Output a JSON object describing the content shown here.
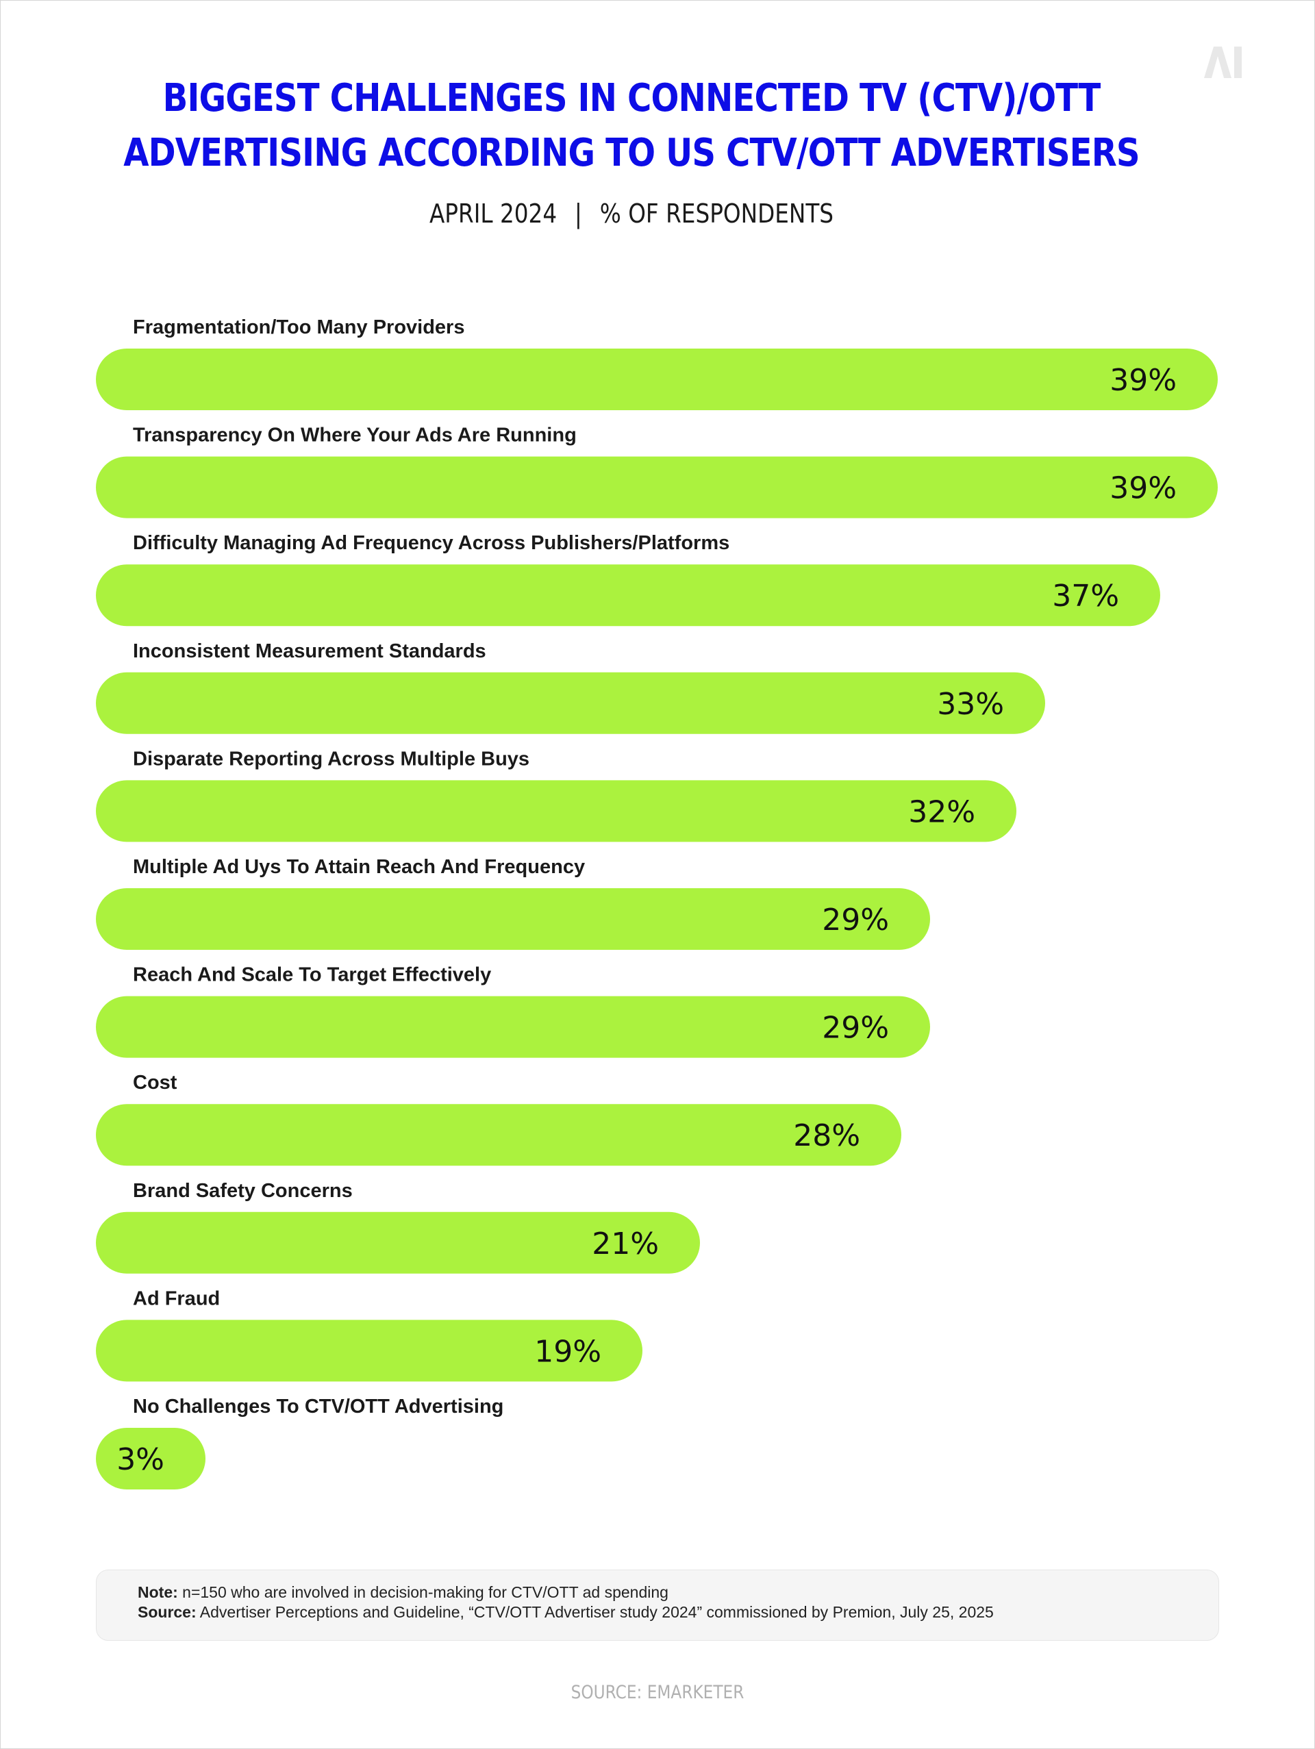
{
  "brand_logo": "AI",
  "colors": {
    "title": "#0d0de6",
    "bar": "#abf23e",
    "text": "#1a1a1a",
    "footer": "#b0b0b0"
  },
  "header": {
    "title_line1": "BIGGEST CHALLENGES IN CONNECTED TV (CTV)/OTT",
    "title_line2": "ADVERTISING ACCORDING TO US CTV/OTT ADVERTISERS",
    "date": "APRIL 2024",
    "separator": "|",
    "unit": "% OF RESPONDENTS"
  },
  "chart_data": {
    "type": "bar",
    "orientation": "horizontal",
    "categories": [
      "Fragmentation/Too Many Providers",
      "Transparency On Where Your Ads Are Running",
      "Difficulty Managing Ad Frequency Across Publishers/Platforms",
      "Inconsistent Measurement Standards",
      "Disparate Reporting Across Multiple Buys",
      "Multiple Ad Uys To Attain Reach And Frequency",
      "Reach And Scale To Target Effectively",
      "Cost",
      "Brand Safety Concerns",
      "Ad Fraud",
      "No Challenges To CTV/OTT Advertising"
    ],
    "values": [
      39,
      39,
      37,
      33,
      32,
      29,
      29,
      28,
      21,
      19,
      3
    ],
    "value_labels": [
      "39%",
      "39%",
      "37%",
      "33%",
      "32%",
      "29%",
      "29%",
      "28%",
      "21%",
      "19%",
      "3%"
    ],
    "title": "Biggest Challenges in Connected TV (CTV)/OTT Advertising According to US CTV/OTT Advertisers",
    "xlabel": "",
    "ylabel": "% of respondents",
    "xlim": [
      0,
      39
    ],
    "grid": false,
    "legend": "none"
  },
  "note": {
    "note_label": "Note:",
    "note_text": "n=150 who are involved in decision-making for CTV/OTT ad spending",
    "source_label": "Source:",
    "source_text": "Advertiser Perceptions and Guideline, “CTV/OTT Advertiser study 2024” commissioned by Premion, July 25, 2025"
  },
  "footer": {
    "source": "SOURCE: EMARKETER"
  }
}
